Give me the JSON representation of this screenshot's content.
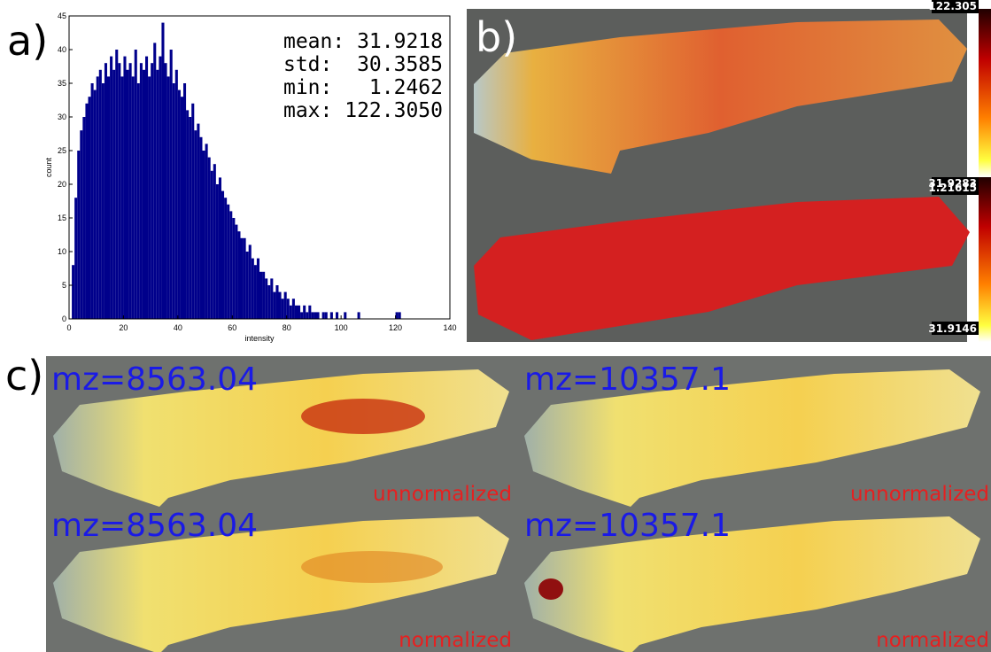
{
  "chart_data": {
    "type": "histogram",
    "xlabel": "intensity",
    "ylabel": "count",
    "annotations": [
      "mean: 31.9218",
      "std:  30.3585",
      "min:   1.2462",
      "max: 122.3050"
    ],
    "color": "#00008b",
    "bins": [
      1,
      2,
      3,
      4,
      5,
      6,
      7,
      8,
      9,
      10,
      11,
      12,
      13,
      14,
      15,
      16,
      17,
      18,
      19,
      20,
      21,
      22,
      23,
      24,
      25,
      26,
      27,
      28,
      29,
      30,
      31,
      32,
      33,
      34,
      35,
      36,
      37,
      38,
      39,
      40,
      41,
      42,
      43,
      44,
      45,
      46,
      47,
      48,
      49,
      50,
      51,
      52,
      53,
      54,
      55,
      56,
      57,
      58,
      59,
      60,
      61,
      62,
      63,
      64,
      65,
      66,
      67,
      68,
      69,
      70,
      71,
      72,
      73,
      74,
      75,
      76,
      77,
      78,
      79,
      80,
      81,
      82,
      83,
      84,
      85,
      86,
      87,
      88,
      89,
      90,
      91,
      92,
      93,
      94,
      95,
      96,
      97,
      98,
      99,
      100,
      101,
      102,
      103,
      104,
      105,
      106,
      107,
      108,
      109,
      110,
      111,
      112,
      113,
      114,
      115,
      116,
      117,
      118,
      119,
      120,
      121,
      122,
      123
    ],
    "values": [
      8,
      18,
      25,
      28,
      30,
      32,
      33,
      35,
      34,
      36,
      37,
      35,
      38,
      36,
      39,
      37,
      40,
      38,
      36,
      39,
      37,
      38,
      36,
      40,
      35,
      38,
      37,
      39,
      36,
      38,
      41,
      37,
      39,
      44,
      38,
      36,
      40,
      35,
      37,
      34,
      33,
      35,
      31,
      30,
      32,
      28,
      29,
      27,
      25,
      26,
      24,
      22,
      23,
      20,
      21,
      19,
      18,
      17,
      16,
      15,
      14,
      13,
      12,
      12,
      10,
      11,
      9,
      8,
      9,
      7,
      7,
      6,
      5,
      6,
      4,
      5,
      4,
      3,
      4,
      3,
      2,
      3,
      2,
      2,
      1,
      2,
      1,
      2,
      1,
      1,
      1,
      0,
      1,
      1,
      0,
      1,
      0,
      1,
      0,
      0,
      1,
      0,
      0,
      0,
      0,
      1,
      0,
      0,
      0,
      0,
      0,
      0,
      0,
      0,
      0,
      0,
      0,
      0,
      0,
      1,
      1,
      0
    ],
    "xlim": [
      0,
      140
    ],
    "xticks": [
      0,
      20,
      40,
      60,
      80,
      100,
      120,
      140
    ],
    "ylim": [
      0,
      45
    ],
    "yticks": [
      0,
      5,
      10,
      15,
      20,
      25,
      30,
      35,
      40,
      45
    ]
  },
  "panels": {
    "a": {
      "label": "a)"
    },
    "b": {
      "label": "b)",
      "colorbars": [
        {
          "max": "122.305",
          "min": "1.21615"
        },
        {
          "max": "31.9283",
          "min": "31.9146"
        }
      ]
    },
    "c": {
      "label": "c)",
      "images": [
        {
          "mz": "mz=8563.04",
          "note": "unnormalized"
        },
        {
          "mz": "mz=10357.1",
          "note": "unnormalized"
        },
        {
          "mz": "mz=8563.04",
          "note": "normalized"
        },
        {
          "mz": "mz=10357.1",
          "note": "normalized"
        }
      ]
    }
  }
}
